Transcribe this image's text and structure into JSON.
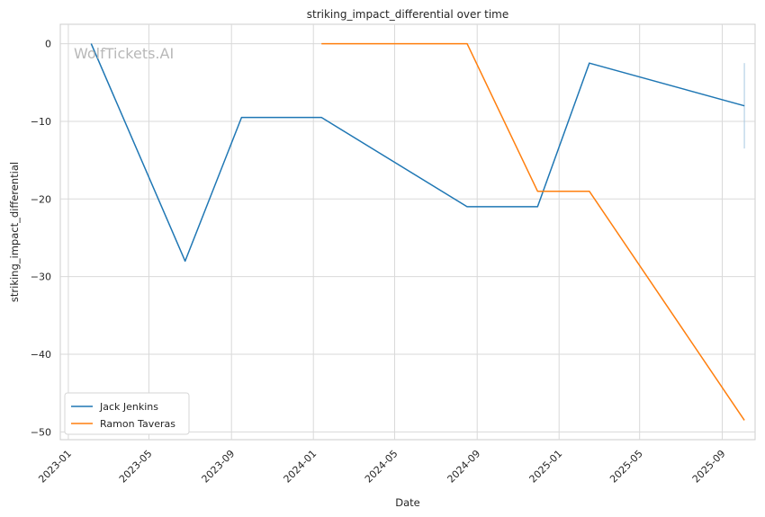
{
  "watermark": "WolfTickets.AI",
  "chart_data": {
    "type": "line",
    "title": "striking_impact_differential over time",
    "xlabel": "Date",
    "ylabel": "striking_impact_differential",
    "xlim": [
      "2022-12-20",
      "2025-10-20"
    ],
    "ylim": [
      -51,
      2.5
    ],
    "x_ticks": [
      "2023-01",
      "2023-05",
      "2023-09",
      "2024-01",
      "2024-05",
      "2024-09",
      "2025-01",
      "2025-05",
      "2025-09"
    ],
    "y_ticks": [
      0,
      -10,
      -20,
      -30,
      -40,
      -50
    ],
    "grid": true,
    "legend_position": "lower-left",
    "series": [
      {
        "name": "Jack Jenkins",
        "color": "#1f77b4",
        "x": [
          "2023-02-04",
          "2023-06-24",
          "2023-09-16",
          "2024-01-13",
          "2024-08-17",
          "2024-11-30",
          "2025-02-15",
          "2025-10-04"
        ],
        "y": [
          0,
          -28,
          -9.5,
          -9.5,
          -21,
          -21,
          -2.5,
          -8
        ]
      },
      {
        "name": "Ramon Taveras",
        "color": "#ff7f0e",
        "x": [
          "2024-01-13",
          "2024-08-17",
          "2024-11-30",
          "2025-02-15",
          "2025-10-04"
        ],
        "y": [
          0,
          0,
          -19,
          -19,
          -48.5
        ]
      }
    ],
    "error_bar": {
      "x": "2025-10-04",
      "y_low": -13.5,
      "y_high": -2.5,
      "color": "#a6c8e0"
    }
  }
}
